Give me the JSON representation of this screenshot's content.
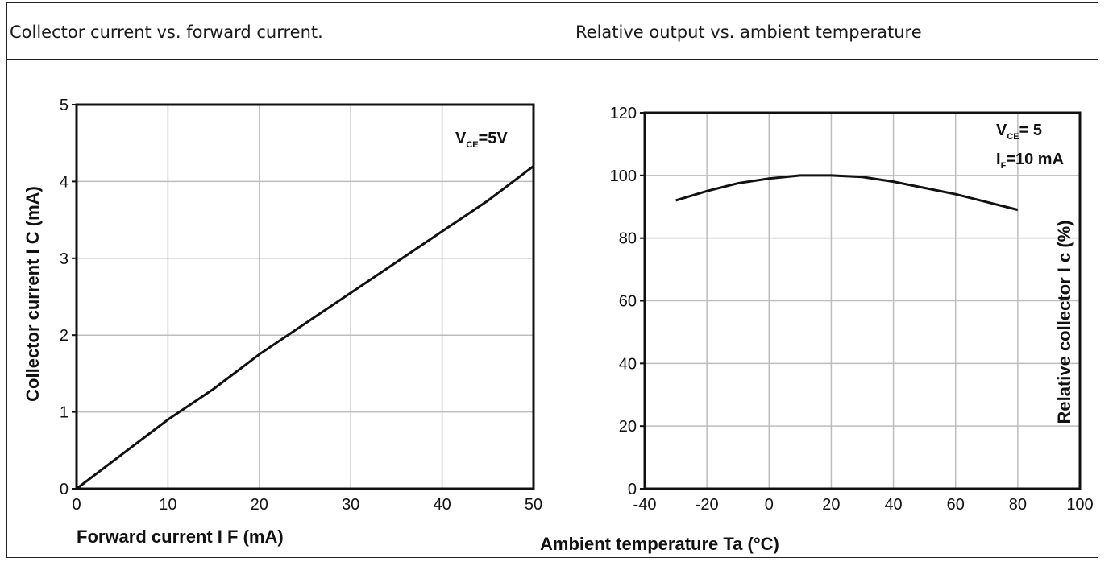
{
  "panels": [
    {
      "title": "Collector current vs. forward current."
    },
    {
      "title": "Relative output vs. ambient temperature"
    }
  ],
  "chart_data": [
    {
      "type": "line",
      "title": "Collector current vs. forward current.",
      "xlabel": "Forward current I F (mA)",
      "ylabel": "Collector current I C (mA)",
      "ylim": [
        0,
        5
      ],
      "xlim": [
        0,
        50
      ],
      "yticks": [
        "0",
        "1",
        "2",
        "3",
        "4",
        "5"
      ],
      "xticks": [
        "0",
        "10",
        "20",
        "30",
        "40",
        "50"
      ],
      "annotation": {
        "main": "V",
        "sub": "CE",
        "rest": "=5V"
      },
      "grid": true,
      "series": [
        {
          "x": [
            0,
            5,
            10,
            15,
            20,
            25,
            30,
            35,
            40,
            45,
            50
          ],
          "values": [
            0,
            0.45,
            0.9,
            1.3,
            1.75,
            2.15,
            2.55,
            2.95,
            3.35,
            3.75,
            4.2
          ]
        }
      ]
    },
    {
      "type": "line",
      "title": "Relative output vs. ambient temperature",
      "xlabel": "Ambient temperature Ta (°C)",
      "ylabel": "Relative collector I c (%)",
      "ylim": [
        0,
        120
      ],
      "xlim": [
        -40,
        100
      ],
      "yticks": [
        "0",
        "20",
        "40",
        "60",
        "80",
        "100",
        "120"
      ],
      "xticks": [
        "-40",
        "-20",
        "0",
        "20",
        "40",
        "60",
        "80",
        "100"
      ],
      "annotation": {
        "line1_main": "V",
        "line1_sub": "CE",
        "line1_rest": "= 5",
        "line2_main": "I",
        "line2_sub": "F",
        "line2_rest": "=10 mA"
      },
      "grid": true,
      "series": [
        {
          "x": [
            -30,
            -20,
            -10,
            0,
            10,
            20,
            30,
            40,
            50,
            60,
            70,
            80
          ],
          "values": [
            92,
            95,
            97.5,
            99,
            100,
            100,
            99.5,
            98,
            96,
            94,
            91.5,
            89
          ]
        }
      ]
    }
  ]
}
